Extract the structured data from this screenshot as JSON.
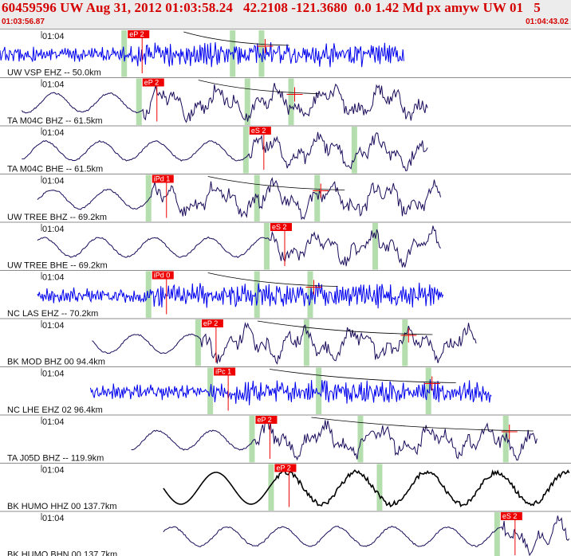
{
  "header": {
    "title": "60459596 UW Aug 31, 2012 01:03:58.24   42.2108 -121.3680  0.0 1.42 Md px amyw UW 01   5",
    "start_time": "01:03:56.87",
    "end_time": "01:04:43.02"
  },
  "colors": {
    "header_text": "#d40000",
    "header_bg": "#ececec",
    "pick": "#ee0000",
    "broadband_trace": "#1a0a5a",
    "short_period_trace": "#0000ee",
    "bold_trace": "#000000",
    "window_band": "#a8d8a0",
    "curve": "#000000"
  },
  "chart_data": {
    "type": "line",
    "title": "60459596 UW Aug 31, 2012 01:03:58.24   42.2108 -121.3680  0.0 1.42 Md px amyw UW 01   5",
    "xlabel": "",
    "ylabel": "",
    "time_range": [
      "01:03:56.87",
      "01:04:43.02"
    ],
    "time_tick_label": "01:04",
    "series": [
      {
        "name": "UW VSP EHZ -- 50.0km",
        "tick": "01:04",
        "pick": "eP 2",
        "pick_time_s": 14.7,
        "trace_start_s": 0.0,
        "trace_end_s": 46.5,
        "style": "short_period",
        "max_time_s": 30.5
      },
      {
        "name": "TA M04C BHZ -- 61.5km",
        "tick": "01:04",
        "pick": "eP 2",
        "pick_time_s": 16.4,
        "trace_start_s": 2.5,
        "trace_end_s": 49.3,
        "style": "broadband",
        "max_time_s": 33.9
      },
      {
        "name": "TA M04C BHE -- 61.5km",
        "tick": "01:04",
        "pick": "eS 2",
        "pick_time_s": 28.7,
        "trace_start_s": 2.5,
        "trace_end_s": 49.3,
        "style": "broadband",
        "max_time_s": null
      },
      {
        "name": "UW TREE BHZ -- 69.2km",
        "tick": "01:04",
        "pick": "iPd 1",
        "pick_time_s": 17.5,
        "trace_start_s": 4.3,
        "trace_end_s": 50.7,
        "style": "broadband",
        "max_time_s": 36.9
      },
      {
        "name": "UW TREE BHE -- 69.2km",
        "tick": "01:04",
        "pick": "eS 2",
        "pick_time_s": 31.1,
        "trace_start_s": 4.3,
        "trace_end_s": 50.7,
        "style": "broadband",
        "max_time_s": null
      },
      {
        "name": "NC LAS EHZ -- 70.2km",
        "tick": "01:04",
        "pick": "iPd 0",
        "pick_time_s": 17.5,
        "trace_start_s": 4.3,
        "trace_end_s": 51.0,
        "style": "short_period",
        "max_time_s": 36.1
      },
      {
        "name": "BK MOD BHZ 00 94.4km",
        "tick": "01:04",
        "pick": "eP 2",
        "pick_time_s": 23.2,
        "trace_start_s": 10.6,
        "trace_end_s": 54.9,
        "style": "broadband",
        "max_time_s": 47.0
      },
      {
        "name": "NC LHE EHZ 02 96.4km",
        "tick": "01:04",
        "pick": "iPc 1",
        "pick_time_s": 24.6,
        "trace_start_s": 10.4,
        "trace_end_s": 56.6,
        "style": "short_period",
        "max_time_s": 49.7
      },
      {
        "name": "TA J05D BHZ -- 119.9km",
        "tick": "01:04",
        "pick": "eP 2",
        "pick_time_s": 29.4,
        "trace_start_s": 15.1,
        "trace_end_s": 61.8,
        "style": "broadband",
        "max_time_s": 58.6
      },
      {
        "name": "BK HUMO HHZ 00 137.7km",
        "tick": "01:04",
        "pick": "eP 2",
        "pick_time_s": 31.6,
        "trace_start_s": 18.8,
        "trace_end_s": 65.6,
        "style": "bold",
        "max_time_s": null
      },
      {
        "name": "BK HUMO BHN 00 137.7km",
        "tick": "01:04",
        "pick": "eS 2",
        "pick_time_s": 57.6,
        "trace_start_s": 18.8,
        "trace_end_s": 65.6,
        "style": "broadband",
        "max_time_s": null
      }
    ]
  }
}
